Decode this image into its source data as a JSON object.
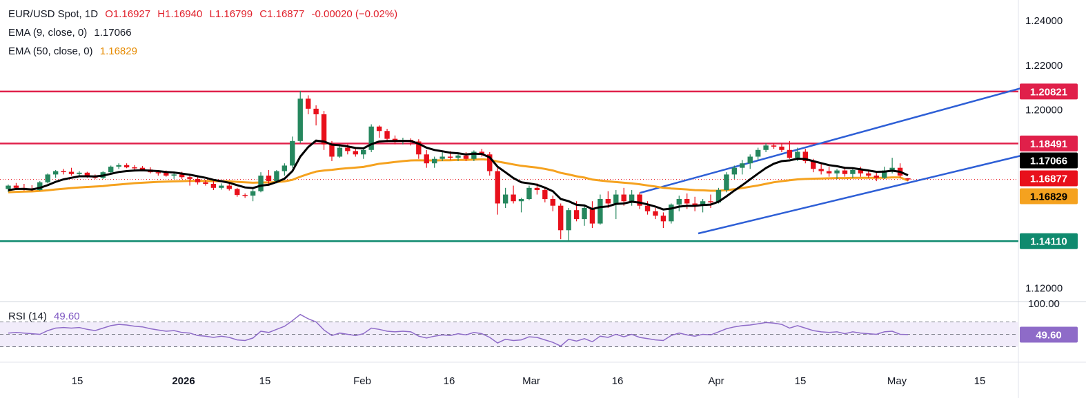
{
  "header": {
    "symbol": "EUR/USD Spot, 1D",
    "open": "O1.16927",
    "high": "H1.16940",
    "low": "L1.16799",
    "close": "C1.16877",
    "change": "-0.00020 (−0.02%)",
    "ema9_label": "EMA (9, close, 0)",
    "ema9_value": "1.17066",
    "ema50_label": "EMA (50, close, 0)",
    "ema50_value": "1.16829",
    "rsi_label": "RSI (14)",
    "rsi_value": "49.60"
  },
  "colors": {
    "up": "#26875e",
    "down": "#e8101b",
    "ema9": "#000000",
    "ema50": "#f5a21f",
    "resistance": "#e0204a",
    "support": "#0f8a6e",
    "channel": "#2e5fd6",
    "rsi_line": "#8e6bc8",
    "rsi_band": "#f1ecfa"
  },
  "chart_data": [
    {
      "type": "candlestick",
      "y_axis_ticks": [
        "1.24000",
        "1.22000",
        "1.20000",
        "1.12000"
      ],
      "ylim": [
        1.118,
        1.245
      ],
      "x_axis_ticks": [
        "15",
        "2026",
        "15",
        "Feb",
        "16",
        "Mar",
        "16",
        "Apr",
        "15",
        "May",
        "15"
      ],
      "horizontal_levels": [
        {
          "value": 1.20821,
          "label": "1.20821",
          "color": "#e0204a"
        },
        {
          "value": 1.18491,
          "label": "1.18491",
          "color": "#e0204a"
        },
        {
          "value": 1.1411,
          "label": "1.14110",
          "color": "#0f8a6e"
        }
      ],
      "price_tags": [
        {
          "label": "1.17066",
          "value": 1.17066,
          "bg": "#000000",
          "fg": "#ffffff"
        },
        {
          "label": "1.16877",
          "value": 1.16877,
          "bg": "#e8101b",
          "fg": "#ffffff"
        },
        {
          "label": "1.16829",
          "value": 1.16829,
          "bg": "#f5a21f",
          "fg": "#000000"
        }
      ],
      "candles": [
        [
          1.1645,
          1.1665,
          1.1632,
          1.166
        ],
        [
          1.166,
          1.1672,
          1.164,
          1.165
        ],
        [
          1.165,
          1.1668,
          1.1638,
          1.1645
        ],
        [
          1.1645,
          1.1662,
          1.1635,
          1.164
        ],
        [
          1.164,
          1.168,
          1.1638,
          1.1675
        ],
        [
          1.1675,
          1.1715,
          1.167,
          1.171
        ],
        [
          1.171,
          1.173,
          1.1695,
          1.1725
        ],
        [
          1.1725,
          1.1735,
          1.171,
          1.1722
        ],
        [
          1.1722,
          1.174,
          1.1705,
          1.1712
        ],
        [
          1.1712,
          1.1725,
          1.17,
          1.1718
        ],
        [
          1.1718,
          1.1722,
          1.1695,
          1.1702
        ],
        [
          1.1702,
          1.171,
          1.169,
          1.1695
        ],
        [
          1.1695,
          1.1725,
          1.169,
          1.172
        ],
        [
          1.172,
          1.175,
          1.1715,
          1.1745
        ],
        [
          1.1745,
          1.176,
          1.1735,
          1.1752
        ],
        [
          1.1752,
          1.176,
          1.1738,
          1.1742
        ],
        [
          1.1742,
          1.1752,
          1.173,
          1.174
        ],
        [
          1.174,
          1.1748,
          1.1725,
          1.1732
        ],
        [
          1.1732,
          1.1742,
          1.1715,
          1.172
        ],
        [
          1.172,
          1.1728,
          1.1705,
          1.1718
        ],
        [
          1.1718,
          1.1728,
          1.17,
          1.1705
        ],
        [
          1.1705,
          1.1718,
          1.169,
          1.171
        ],
        [
          1.171,
          1.1722,
          1.169,
          1.1698
        ],
        [
          1.1698,
          1.171,
          1.166,
          1.169
        ],
        [
          1.169,
          1.17,
          1.1665,
          1.1675
        ],
        [
          1.1675,
          1.1685,
          1.166,
          1.1668
        ],
        [
          1.1668,
          1.168,
          1.164,
          1.165
        ],
        [
          1.165,
          1.167,
          1.1642,
          1.166
        ],
        [
          1.166,
          1.1672,
          1.1638,
          1.1645
        ],
        [
          1.1645,
          1.165,
          1.161,
          1.1618
        ],
        [
          1.1618,
          1.1625,
          1.1605,
          1.1615
        ],
        [
          1.1615,
          1.165,
          1.159,
          1.1635
        ],
        [
          1.1635,
          1.172,
          1.163,
          1.1705
        ],
        [
          1.1705,
          1.173,
          1.166,
          1.168
        ],
        [
          1.168,
          1.173,
          1.167,
          1.1725
        ],
        [
          1.1725,
          1.176,
          1.1705,
          1.175
        ],
        [
          1.175,
          1.188,
          1.174,
          1.186
        ],
        [
          1.186,
          1.2085,
          1.185,
          1.205
        ],
        [
          1.205,
          1.2065,
          1.198,
          1.2005
        ],
        [
          1.2005,
          1.202,
          1.193,
          1.198
        ],
        [
          1.198,
          1.1995,
          1.182,
          1.1845
        ],
        [
          1.1845,
          1.186,
          1.177,
          1.179
        ],
        [
          1.179,
          1.184,
          1.1785,
          1.183
        ],
        [
          1.183,
          1.1845,
          1.18,
          1.1815
        ],
        [
          1.1815,
          1.183,
          1.179,
          1.18
        ],
        [
          1.18,
          1.183,
          1.178,
          1.182
        ],
        [
          1.182,
          1.1935,
          1.181,
          1.1925
        ],
        [
          1.1925,
          1.193,
          1.1875,
          1.1905
        ],
        [
          1.1905,
          1.1915,
          1.1855,
          1.187
        ],
        [
          1.187,
          1.1885,
          1.1845,
          1.186
        ],
        [
          1.186,
          1.1875,
          1.1845,
          1.1865
        ],
        [
          1.1865,
          1.1872,
          1.184,
          1.1858
        ],
        [
          1.1858,
          1.1868,
          1.178,
          1.18
        ],
        [
          1.18,
          1.182,
          1.174,
          1.176
        ],
        [
          1.176,
          1.179,
          1.174,
          1.178
        ],
        [
          1.178,
          1.181,
          1.177,
          1.179
        ],
        [
          1.179,
          1.1815,
          1.1775,
          1.1785
        ],
        [
          1.1785,
          1.18,
          1.177,
          1.1795
        ],
        [
          1.1795,
          1.181,
          1.177,
          1.178
        ],
        [
          1.178,
          1.1818,
          1.177,
          1.1812
        ],
        [
          1.1812,
          1.1825,
          1.179,
          1.18
        ],
        [
          1.18,
          1.181,
          1.1705,
          1.1725
        ],
        [
          1.1725,
          1.174,
          1.153,
          1.158
        ],
        [
          1.158,
          1.165,
          1.156,
          1.162
        ],
        [
          1.162,
          1.166,
          1.158,
          1.159
        ],
        [
          1.159,
          1.1605,
          1.154,
          1.16
        ],
        [
          1.16,
          1.166,
          1.1595,
          1.165
        ],
        [
          1.165,
          1.167,
          1.162,
          1.164
        ],
        [
          1.164,
          1.1655,
          1.1585,
          1.16
        ],
        [
          1.16,
          1.1615,
          1.1545,
          1.157
        ],
        [
          1.157,
          1.158,
          1.142,
          1.146
        ],
        [
          1.146,
          1.156,
          1.141,
          1.155
        ],
        [
          1.155,
          1.159,
          1.15,
          1.151
        ],
        [
          1.151,
          1.1575,
          1.148,
          1.156
        ],
        [
          1.156,
          1.159,
          1.147,
          1.149
        ],
        [
          1.149,
          1.162,
          1.1485,
          1.16
        ],
        [
          1.16,
          1.1635,
          1.156,
          1.158
        ],
        [
          1.158,
          1.164,
          1.151,
          1.162
        ],
        [
          1.162,
          1.165,
          1.157,
          1.159
        ],
        [
          1.159,
          1.164,
          1.157,
          1.162
        ],
        [
          1.162,
          1.163,
          1.1555,
          1.157
        ],
        [
          1.157,
          1.159,
          1.153,
          1.1545
        ],
        [
          1.1545,
          1.156,
          1.151,
          1.1525
        ],
        [
          1.1525,
          1.154,
          1.147,
          1.15
        ],
        [
          1.15,
          1.158,
          1.149,
          1.1575
        ],
        [
          1.1575,
          1.1615,
          1.1545,
          1.16
        ],
        [
          1.16,
          1.1625,
          1.1555,
          1.158
        ],
        [
          1.158,
          1.161,
          1.1545,
          1.157
        ],
        [
          1.157,
          1.16,
          1.154,
          1.159
        ],
        [
          1.159,
          1.162,
          1.156,
          1.1585
        ],
        [
          1.1585,
          1.165,
          1.158,
          1.164
        ],
        [
          1.164,
          1.172,
          1.163,
          1.171
        ],
        [
          1.171,
          1.175,
          1.169,
          1.174
        ],
        [
          1.174,
          1.1775,
          1.171,
          1.176
        ],
        [
          1.176,
          1.18,
          1.1735,
          1.179
        ],
        [
          1.179,
          1.183,
          1.1775,
          1.182
        ],
        [
          1.182,
          1.185,
          1.181,
          1.184
        ],
        [
          1.184,
          1.185,
          1.1825,
          1.1835
        ],
        [
          1.1835,
          1.185,
          1.181,
          1.182
        ],
        [
          1.182,
          1.186,
          1.178,
          1.1785
        ],
        [
          1.1785,
          1.183,
          1.177,
          1.1812
        ],
        [
          1.1812,
          1.1825,
          1.176,
          1.177
        ],
        [
          1.177,
          1.178,
          1.172,
          1.1735
        ],
        [
          1.1735,
          1.176,
          1.171,
          1.1725
        ],
        [
          1.1725,
          1.1745,
          1.17,
          1.1715
        ],
        [
          1.1715,
          1.1735,
          1.169,
          1.1728
        ],
        [
          1.1728,
          1.1745,
          1.17,
          1.1712
        ],
        [
          1.1712,
          1.174,
          1.1695,
          1.173
        ],
        [
          1.173,
          1.1745,
          1.17,
          1.1715
        ],
        [
          1.1715,
          1.173,
          1.1695,
          1.1705
        ],
        [
          1.1705,
          1.172,
          1.168,
          1.1695
        ],
        [
          1.1695,
          1.1745,
          1.169,
          1.1728
        ],
        [
          1.1728,
          1.1785,
          1.1715,
          1.174
        ],
        [
          1.174,
          1.176,
          1.1695,
          1.1705
        ],
        [
          1.16927,
          1.1694,
          1.16799,
          1.16877
        ]
      ],
      "ema9": [
        1.164,
        1.1645,
        1.1645,
        1.1643,
        1.165,
        1.1662,
        1.1677,
        1.1688,
        1.1695,
        1.1702,
        1.1702,
        1.1701,
        1.1705,
        1.1713,
        1.1721,
        1.1725,
        1.1728,
        1.1729,
        1.1727,
        1.1725,
        1.1721,
        1.1719,
        1.1714,
        1.1709,
        1.1702,
        1.1695,
        1.1686,
        1.168,
        1.1673,
        1.1662,
        1.1652,
        1.1649,
        1.166,
        1.1664,
        1.1676,
        1.1691,
        1.1725,
        1.179,
        1.1833,
        1.1862,
        1.1858,
        1.1844,
        1.1841,
        1.1836,
        1.1829,
        1.1827,
        1.1846,
        1.1858,
        1.186,
        1.186,
        1.1861,
        1.186,
        1.1848,
        1.183,
        1.182,
        1.1814,
        1.1808,
        1.1805,
        1.18,
        1.1803,
        1.1802,
        1.1787,
        1.1745,
        1.172,
        1.1694,
        1.1675,
        1.167,
        1.1664,
        1.1651,
        1.1635,
        1.16,
        1.159,
        1.1574,
        1.1571,
        1.1555,
        1.1564,
        1.1567,
        1.1578,
        1.158,
        1.1588,
        1.1584,
        1.1576,
        1.1566,
        1.1553,
        1.1557,
        1.1566,
        1.1569,
        1.1569,
        1.1573,
        1.1575,
        1.1588,
        1.1612,
        1.1638,
        1.1662,
        1.1688,
        1.1714,
        1.1739,
        1.1758,
        1.177,
        1.1773,
        1.1781,
        1.1779,
        1.177,
        1.1761,
        1.1752,
        1.1747,
        1.174,
        1.1738,
        1.1733,
        1.1728,
        1.1722,
        1.1723,
        1.1727,
        1.1722,
        1.17066
      ],
      "ema50": [
        1.163,
        1.1632,
        1.1633,
        1.1634,
        1.1636,
        1.1639,
        1.1643,
        1.1646,
        1.1649,
        1.1652,
        1.1654,
        1.1656,
        1.1658,
        1.1662,
        1.1665,
        1.1668,
        1.1671,
        1.1673,
        1.1675,
        1.1677,
        1.1678,
        1.1679,
        1.168,
        1.1681,
        1.1681,
        1.1681,
        1.168,
        1.168,
        1.1679,
        1.1677,
        1.1675,
        1.1673,
        1.1674,
        1.1674,
        1.1676,
        1.1679,
        1.1686,
        1.17,
        1.1712,
        1.1723,
        1.1728,
        1.1731,
        1.1735,
        1.1738,
        1.1741,
        1.1744,
        1.1751,
        1.1758,
        1.1762,
        1.1766,
        1.177,
        1.1773,
        1.1774,
        1.1773,
        1.1773,
        1.1774,
        1.1774,
        1.1775,
        1.1775,
        1.1777,
        1.1778,
        1.1776,
        1.1768,
        1.1762,
        1.1755,
        1.1749,
        1.1745,
        1.1741,
        1.1735,
        1.1728,
        1.1717,
        1.171,
        1.1702,
        1.1696,
        1.1687,
        1.1683,
        1.1679,
        1.1676,
        1.1673,
        1.167,
        1.1666,
        1.1661,
        1.1656,
        1.165,
        1.1647,
        1.1645,
        1.1643,
        1.164,
        1.1639,
        1.1637,
        1.1637,
        1.164,
        1.1644,
        1.1649,
        1.1655,
        1.1661,
        1.1668,
        1.1675,
        1.168,
        1.1684,
        1.1688,
        1.169,
        1.1691,
        1.1692,
        1.1693,
        1.1694,
        1.1694,
        1.1695,
        1.1695,
        1.1695,
        1.1695,
        1.1695,
        1.1697,
        1.1697,
        1.16829
      ]
    },
    {
      "type": "line",
      "name": "RSI (14)",
      "y_axis_ticks": [
        "100.00"
      ],
      "ylim": [
        20,
        100
      ],
      "levels": [
        70,
        50,
        30
      ],
      "last_label": "49.60",
      "values": [
        52,
        53,
        52,
        51,
        50,
        56,
        60,
        61,
        60,
        61,
        58,
        56,
        60,
        64,
        66,
        65,
        63,
        62,
        59,
        57,
        55,
        56,
        53,
        52,
        48,
        47,
        45,
        47,
        45,
        41,
        40,
        44,
        55,
        53,
        58,
        63,
        72,
        82,
        75,
        70,
        57,
        48,
        52,
        50,
        48,
        51,
        60,
        58,
        55,
        54,
        55,
        54,
        47,
        44,
        47,
        49,
        48,
        51,
        49,
        53,
        51,
        45,
        36,
        42,
        40,
        41,
        46,
        45,
        41,
        37,
        31,
        42,
        39,
        43,
        38,
        47,
        45,
        50,
        46,
        50,
        45,
        43,
        41,
        40,
        48,
        52,
        49,
        47,
        50,
        49,
        54,
        59,
        62,
        64,
        65,
        67,
        69,
        68,
        66,
        60,
        64,
        60,
        56,
        54,
        53,
        54,
        51,
        54,
        52,
        51,
        50,
        54,
        55,
        50,
        49.6
      ]
    }
  ]
}
